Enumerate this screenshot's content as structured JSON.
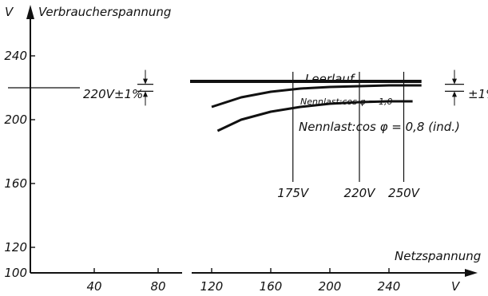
{
  "chart_data": {
    "type": "line",
    "ylabel": "Verbraucherspannung",
    "yunit": "V",
    "xlabel": "Netzspannung",
    "xunit": "V",
    "xlim": [
      0,
      270
    ],
    "ylim": [
      100,
      260
    ],
    "x_ticks": [
      {
        "value": 40,
        "label": "40"
      },
      {
        "value": 80,
        "label": "80"
      },
      {
        "value": 120,
        "label": "120"
      },
      {
        "value": 160,
        "label": "160"
      },
      {
        "value": 200,
        "label": "200"
      },
      {
        "value": 240,
        "label": "240"
      }
    ],
    "y_ticks": [
      {
        "value": 100,
        "label": "100"
      },
      {
        "value": 120,
        "label": "120"
      },
      {
        "value": 160,
        "label": "160"
      },
      {
        "value": 200,
        "label": "200"
      },
      {
        "value": 240,
        "label": "240"
      }
    ],
    "series": [
      {
        "name": "Leerlauf",
        "x": [
          100,
          120,
          160,
          200,
          240,
          262
        ],
        "y": [
          224.0,
          224.0,
          224.0,
          224.0,
          224.0,
          224.0
        ]
      },
      {
        "name": "Nennlast: cos φ = 1,0",
        "x": [
          120,
          140,
          160,
          180,
          200,
          220,
          240,
          262
        ],
        "y": [
          208.0,
          214.0,
          217.5,
          219.5,
          220.5,
          221.0,
          221.5,
          221.5
        ]
      },
      {
        "name": "Nennlast: cos φ = 0,8 (ind.)",
        "x": [
          124,
          140,
          160,
          180,
          200,
          220,
          240,
          256
        ],
        "y": [
          193.0,
          200.0,
          205.0,
          208.0,
          210.0,
          211.0,
          211.5,
          211.5
        ]
      }
    ],
    "series_labels": {
      "leerlauf": "Leerlauf",
      "cos10": "Nennlast:cos φ = 1,0",
      "cos08": "Nennlast:cos φ = 0,8 (ind.)"
    },
    "reference_lines": [
      {
        "value": 175,
        "label": "175V"
      },
      {
        "value": 220,
        "label": "220V"
      },
      {
        "value": 250,
        "label": "250V"
      }
    ],
    "annotations": {
      "tolerance_left": "220V±1%",
      "tolerance_right": "±1%"
    }
  },
  "colors": {
    "ink": "#111111",
    "background": "#ffffff"
  }
}
